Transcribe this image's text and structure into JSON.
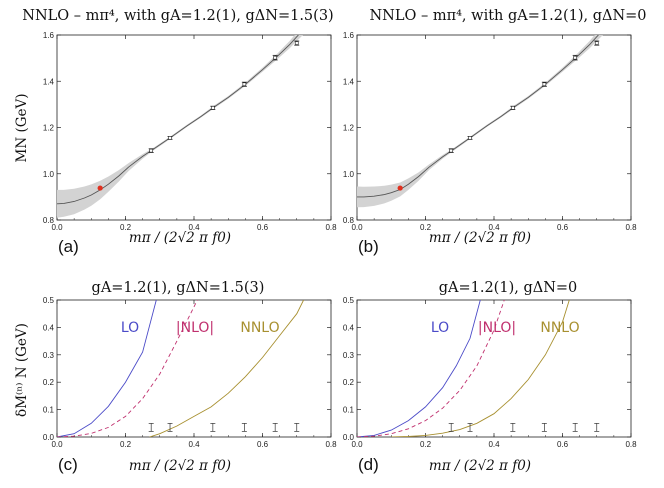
{
  "chart_data": [
    {
      "id": "a",
      "type": "line",
      "panel_label": "(a)",
      "title": "NNLO – mπ⁴, with gA=1.2(1), gΔN=1.5(3)",
      "xlabel": "mπ / (2√2 π f0)",
      "ylabel": "MN (GeV)",
      "xlim": [
        0.0,
        0.8
      ],
      "ylim": [
        0.8,
        1.6
      ],
      "xticks": [
        "0.0",
        "0.2",
        "0.4",
        "0.6",
        "0.8"
      ],
      "yticks": [
        "0.8",
        "1.0",
        "1.2",
        "1.4",
        "1.6"
      ],
      "series": [
        {
          "name": "fit",
          "x": [
            0.0,
            0.02,
            0.05,
            0.08,
            0.1,
            0.126,
            0.15,
            0.18,
            0.21,
            0.25,
            0.28,
            0.33,
            0.38,
            0.42,
            0.46,
            0.5,
            0.55,
            0.6,
            0.64,
            0.68,
            0.72
          ],
          "y": [
            0.87,
            0.872,
            0.88,
            0.895,
            0.908,
            0.93,
            0.955,
            0.99,
            1.03,
            1.075,
            1.105,
            1.155,
            1.208,
            1.247,
            1.29,
            1.33,
            1.387,
            1.45,
            1.503,
            1.56,
            1.625
          ]
        },
        {
          "name": "band_half_width",
          "x": [
            0.0,
            0.02,
            0.05,
            0.08,
            0.1,
            0.126,
            0.15,
            0.18,
            0.21,
            0.25,
            0.28,
            0.33,
            0.38,
            0.42,
            0.46,
            0.5,
            0.55,
            0.6,
            0.64,
            0.68,
            0.72
          ],
          "y": [
            0.06,
            0.058,
            0.055,
            0.05,
            0.046,
            0.04,
            0.033,
            0.025,
            0.017,
            0.01,
            0.006,
            0.005,
            0.005,
            0.005,
            0.006,
            0.006,
            0.007,
            0.009,
            0.012,
            0.016,
            0.022
          ]
        }
      ],
      "lattice_points": {
        "x": [
          0.275,
          0.33,
          0.455,
          0.547,
          0.637,
          0.7
        ],
        "y": [
          1.1,
          1.155,
          1.285,
          1.387,
          1.502,
          1.565
        ],
        "err": [
          0.008,
          0.006,
          0.007,
          0.009,
          0.01,
          0.009
        ]
      },
      "physical_point": {
        "x": 0.126,
        "y": 0.938
      }
    },
    {
      "id": "b",
      "type": "line",
      "panel_label": "(b)",
      "title": "NNLO – mπ⁴, with gA=1.2(1), gΔN=0",
      "xlabel": "mπ / (2√2 π f0)",
      "ylabel": "",
      "xlim": [
        0.0,
        0.8
      ],
      "ylim": [
        0.8,
        1.6
      ],
      "xticks": [
        "0.0",
        "0.2",
        "0.4",
        "0.6",
        "0.8"
      ],
      "yticks": [
        "0.8",
        "1.0",
        "1.2",
        "1.4",
        "1.6"
      ],
      "series": [
        {
          "name": "fit",
          "x": [
            0.0,
            0.02,
            0.05,
            0.08,
            0.1,
            0.126,
            0.15,
            0.18,
            0.21,
            0.25,
            0.28,
            0.33,
            0.38,
            0.42,
            0.46,
            0.5,
            0.55,
            0.6,
            0.64,
            0.68,
            0.72
          ],
          "y": [
            0.9,
            0.9,
            0.903,
            0.91,
            0.918,
            0.932,
            0.955,
            0.988,
            1.028,
            1.073,
            1.103,
            1.155,
            1.208,
            1.247,
            1.29,
            1.33,
            1.387,
            1.45,
            1.503,
            1.56,
            1.625
          ]
        },
        {
          "name": "band_half_width",
          "x": [
            0.0,
            0.02,
            0.05,
            0.08,
            0.1,
            0.126,
            0.15,
            0.18,
            0.21,
            0.25,
            0.28,
            0.33,
            0.38,
            0.42,
            0.46,
            0.5,
            0.55,
            0.6,
            0.64,
            0.68,
            0.72
          ],
          "y": [
            0.045,
            0.044,
            0.042,
            0.038,
            0.035,
            0.03,
            0.025,
            0.018,
            0.012,
            0.008,
            0.006,
            0.005,
            0.005,
            0.005,
            0.006,
            0.006,
            0.007,
            0.009,
            0.012,
            0.016,
            0.022
          ]
        }
      ],
      "lattice_points": {
        "x": [
          0.275,
          0.33,
          0.455,
          0.547,
          0.637,
          0.7
        ],
        "y": [
          1.1,
          1.155,
          1.285,
          1.387,
          1.502,
          1.565
        ],
        "err": [
          0.008,
          0.006,
          0.007,
          0.009,
          0.01,
          0.009
        ]
      },
      "physical_point": {
        "x": 0.126,
        "y": 0.938
      }
    },
    {
      "id": "c",
      "type": "line",
      "panel_label": "(c)",
      "title": "gA=1.2(1), gΔN=1.5(3)",
      "xlabel": "mπ / (2√2 π f0)",
      "ylabel": "δM⁽ⁿ⁾ N (GeV)",
      "xlim": [
        0.0,
        0.8
      ],
      "ylim": [
        0.0,
        0.5
      ],
      "xticks": [
        "0.0",
        "0.2",
        "0.4",
        "0.6",
        "0.8"
      ],
      "yticks": [
        "0.0",
        "0.1",
        "0.2",
        "0.3",
        "0.4",
        "0.5"
      ],
      "labels": {
        "lo": "LO",
        "nlo": "|NLO|",
        "nnlo": "NNLO"
      },
      "series": [
        {
          "name": "LO",
          "x": [
            0.0,
            0.05,
            0.1,
            0.15,
            0.2,
            0.25,
            0.29
          ],
          "y": [
            0.0,
            0.012,
            0.05,
            0.112,
            0.2,
            0.31,
            0.5
          ]
        },
        {
          "name": "|NLO|",
          "x": [
            0.0,
            0.05,
            0.1,
            0.15,
            0.2,
            0.25,
            0.3,
            0.35,
            0.41
          ],
          "y": [
            0.0,
            0.003,
            0.013,
            0.035,
            0.075,
            0.14,
            0.23,
            0.35,
            0.5
          ]
        },
        {
          "name": "NNLO",
          "x": [
            0.27,
            0.3,
            0.35,
            0.4,
            0.45,
            0.5,
            0.55,
            0.6,
            0.65,
            0.7,
            0.72
          ],
          "y": [
            0.0,
            0.012,
            0.04,
            0.075,
            0.11,
            0.16,
            0.22,
            0.29,
            0.37,
            0.45,
            0.5
          ]
        }
      ],
      "data_markers": {
        "x": [
          0.275,
          0.33,
          0.455,
          0.547,
          0.637,
          0.7
        ],
        "y": [
          0.035,
          0.035,
          0.035,
          0.035,
          0.035,
          0.035
        ]
      }
    },
    {
      "id": "d",
      "type": "line",
      "panel_label": "(d)",
      "title": "gA=1.2(1), gΔN=0",
      "xlabel": "mπ / (2√2 π f0)",
      "ylabel": "",
      "xlim": [
        0.0,
        0.8
      ],
      "ylim": [
        0.0,
        0.5
      ],
      "xticks": [
        "0.0",
        "0.2",
        "0.4",
        "0.6",
        "0.8"
      ],
      "yticks": [
        "0.0",
        "0.1",
        "0.2",
        "0.3",
        "0.4",
        "0.5"
      ],
      "labels": {
        "lo": "LO",
        "nlo": "|NLO|",
        "nnlo": "NNLO"
      },
      "series": [
        {
          "name": "LO",
          "x": [
            0.0,
            0.05,
            0.1,
            0.15,
            0.2,
            0.25,
            0.29,
            0.33,
            0.36
          ],
          "y": [
            0.0,
            0.006,
            0.025,
            0.06,
            0.11,
            0.18,
            0.26,
            0.36,
            0.5
          ]
        },
        {
          "name": "|NLO|",
          "x": [
            0.0,
            0.05,
            0.1,
            0.15,
            0.2,
            0.25,
            0.3,
            0.35,
            0.4,
            0.43
          ],
          "y": [
            0.0,
            0.003,
            0.012,
            0.03,
            0.06,
            0.105,
            0.17,
            0.26,
            0.39,
            0.5
          ]
        },
        {
          "name": "NNLO",
          "x": [
            0.1,
            0.15,
            0.2,
            0.25,
            0.3,
            0.35,
            0.4,
            0.45,
            0.5,
            0.55,
            0.6,
            0.62
          ],
          "y": [
            0.0,
            0.002,
            0.006,
            0.014,
            0.027,
            0.05,
            0.085,
            0.14,
            0.21,
            0.3,
            0.42,
            0.5
          ]
        }
      ],
      "data_markers": {
        "x": [
          0.275,
          0.33,
          0.455,
          0.547,
          0.637,
          0.7
        ],
        "y": [
          0.035,
          0.035,
          0.035,
          0.035,
          0.035,
          0.035
        ]
      }
    }
  ],
  "colors": {
    "band": "#d3d3d3",
    "fit": "#555555",
    "point": "#e0301e",
    "lo": "#4b4bc8",
    "nlo": "#c0306e",
    "nnlo": "#a89030",
    "axis": "#222222"
  }
}
